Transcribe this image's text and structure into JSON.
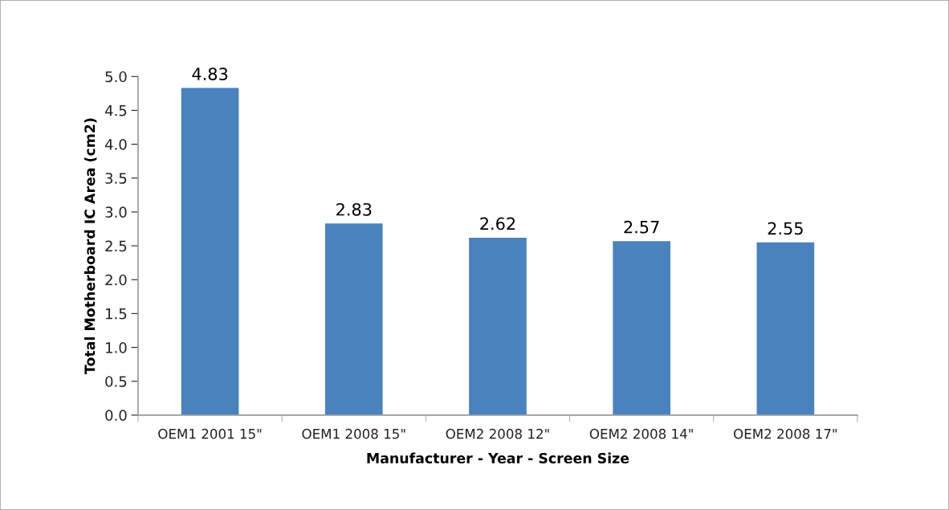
{
  "chart_data": {
    "type": "bar",
    "xlabel": "Manufacturer - Year - Screen Size",
    "ylabel": "Total Motherboard IC Area (cm2)",
    "categories": [
      "OEM1 2001 15\"",
      "OEM1 2008 15\"",
      "OEM2 2008 12\"",
      "OEM2 2008 14\"",
      "OEM2 2008 17\""
    ],
    "values": [
      4.83,
      2.83,
      2.62,
      2.57,
      2.55
    ],
    "color": "#4a82be",
    "ylim": [
      0,
      5
    ],
    "yticks": [
      {
        "value": 0,
        "label": "0.0"
      },
      {
        "value": 0.5,
        "label": "0.5"
      },
      {
        "value": 1,
        "label": "1.0"
      },
      {
        "value": 1.5,
        "label": "1.5"
      },
      {
        "value": 2,
        "label": "2.0"
      },
      {
        "value": 2.5,
        "label": "2.5"
      },
      {
        "value": 3,
        "label": "3.0"
      },
      {
        "value": 3.5,
        "label": "3.5"
      },
      {
        "value": 4,
        "label": "4.0"
      },
      {
        "value": 4.5,
        "label": "4.5"
      },
      {
        "value": 5,
        "label": "5.0"
      }
    ],
    "data_labels": true,
    "grid": false,
    "legend": false
  }
}
